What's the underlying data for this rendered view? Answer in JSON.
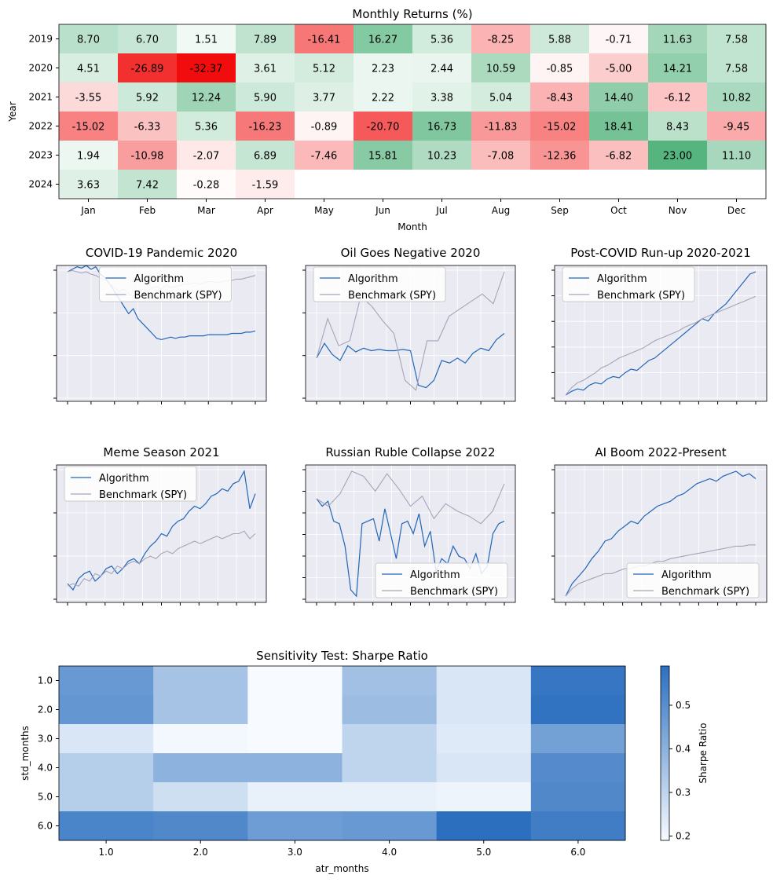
{
  "chart_data": [
    {
      "type": "heatmap",
      "title": "Monthly Returns (%)",
      "xlabel": "Month",
      "ylabel": "Year",
      "x_categories": [
        "Jan",
        "Feb",
        "Mar",
        "Apr",
        "May",
        "Jun",
        "Jul",
        "Aug",
        "Sep",
        "Oct",
        "Nov",
        "Dec"
      ],
      "y_categories": [
        "2019",
        "2020",
        "2021",
        "2022",
        "2023",
        "2024"
      ],
      "values": [
        [
          8.7,
          6.7,
          1.51,
          7.89,
          -16.41,
          16.27,
          5.36,
          -8.25,
          5.88,
          -0.71,
          11.63,
          7.58
        ],
        [
          4.51,
          -26.89,
          -32.37,
          3.61,
          5.12,
          2.23,
          2.44,
          10.59,
          -0.85,
          -5.0,
          14.21,
          7.58
        ],
        [
          -3.55,
          5.92,
          12.24,
          5.9,
          3.77,
          2.22,
          3.38,
          5.04,
          -8.43,
          14.4,
          -6.12,
          10.82
        ],
        [
          -15.02,
          -6.33,
          5.36,
          -16.23,
          -0.89,
          -20.7,
          16.73,
          -11.83,
          -15.02,
          18.41,
          8.43,
          -9.45
        ],
        [
          1.94,
          -10.98,
          -2.07,
          6.89,
          -7.46,
          15.81,
          10.23,
          -7.08,
          -12.36,
          -6.82,
          23.0,
          11.1
        ],
        [
          3.63,
          7.42,
          -0.28,
          -1.59,
          null,
          null,
          null,
          null,
          null,
          null,
          null,
          null
        ]
      ],
      "labels": [
        [
          "8.70",
          "6.70",
          "1.51",
          "7.89",
          "-16.41",
          "16.27",
          "5.36",
          "-8.25",
          "5.88",
          "-0.71",
          "11.63",
          "7.58"
        ],
        [
          "4.51",
          "-26.89",
          "-32.37",
          "3.61",
          "5.12",
          "2.23",
          "2.44",
          "10.59",
          "-0.85",
          "-5.00",
          "14.21",
          "7.58"
        ],
        [
          "-3.55",
          "5.92",
          "12.24",
          "5.90",
          "3.77",
          "2.22",
          "3.38",
          "5.04",
          "-8.43",
          "14.40",
          "-6.12",
          "10.82"
        ],
        [
          "-15.02",
          "-6.33",
          "5.36",
          "-16.23",
          "-0.89",
          "-20.70",
          "16.73",
          "-11.83",
          "-15.02",
          "18.41",
          "8.43",
          "-9.45"
        ],
        [
          "1.94",
          "-10.98",
          "-2.07",
          "6.89",
          "-7.46",
          "15.81",
          "10.23",
          "-7.08",
          "-12.36",
          "-6.82",
          "23.00",
          "11.10"
        ],
        [
          "3.63",
          "7.42",
          "-0.28",
          "-1.59",
          "",
          "",
          "",
          "",
          "",
          "",
          "",
          ""
        ]
      ],
      "colors": {
        "positive": "#2ca25f",
        "negative": "#f00000",
        "neutral": "#ffffff"
      }
    },
    {
      "type": "line",
      "title": "COVID-19 Pandemic 2020",
      "legend": [
        "Algorithm",
        "Benchmark (SPY)"
      ],
      "legend_position": "top-center",
      "grid": true,
      "x_tick_count": 9,
      "y_tick_count": 4,
      "series": [
        {
          "name": "Algorithm",
          "color": "#2166b8",
          "values": [
            1.0,
            1.02,
            1.04,
            1.03,
            1.05,
            1.02,
            1.04,
            0.98,
            0.95,
            0.9,
            0.84,
            0.78,
            0.72,
            0.66,
            0.7,
            0.62,
            0.58,
            0.54,
            0.5,
            0.46,
            0.45,
            0.46,
            0.47,
            0.46,
            0.47,
            0.47,
            0.48,
            0.48,
            0.48,
            0.48,
            0.49,
            0.49,
            0.49,
            0.49,
            0.49,
            0.5,
            0.5,
            0.5,
            0.51,
            0.51,
            0.52
          ]
        },
        {
          "name": "Benchmark (SPY)",
          "color": "#a6a4b9",
          "values": [
            1.0,
            1.01,
            1.0,
            0.99,
            1.0,
            0.98,
            0.97,
            0.95,
            0.93,
            0.9,
            0.87,
            0.84,
            0.86,
            0.82,
            0.8,
            0.83,
            0.86,
            0.84,
            0.87,
            0.88,
            0.86,
            0.89,
            0.87,
            0.88,
            0.89,
            0.9,
            0.9,
            0.91,
            0.9,
            0.91,
            0.92,
            0.92,
            0.91,
            0.92,
            0.93,
            0.93,
            0.94,
            0.94,
            0.95,
            0.96,
            0.97
          ]
        }
      ]
    },
    {
      "type": "line",
      "title": "Oil Goes Negative 2020",
      "legend": [
        "Algorithm",
        "Benchmark (SPY)"
      ],
      "legend_position": "top-left",
      "grid": true,
      "x_tick_count": 9,
      "y_tick_count": 4,
      "series": [
        {
          "name": "Algorithm",
          "color": "#2166b8",
          "values": [
            0.3,
            0.42,
            0.33,
            0.28,
            0.4,
            0.35,
            0.38,
            0.36,
            0.37,
            0.36,
            0.36,
            0.37,
            0.36,
            0.08,
            0.06,
            0.12,
            0.28,
            0.26,
            0.3,
            0.26,
            0.34,
            0.38,
            0.36,
            0.45,
            0.5
          ]
        },
        {
          "name": "Benchmark (SPY)",
          "color": "#a6a4b9",
          "values": [
            0.3,
            0.62,
            0.4,
            0.44,
            0.8,
            0.72,
            0.6,
            0.5,
            0.12,
            0.04,
            0.44,
            0.44,
            0.64,
            0.7,
            0.76,
            0.82,
            0.74,
            1.0
          ]
        }
      ]
    },
    {
      "type": "line",
      "title": "Post-COVID Run-up 2020-2021",
      "legend": [
        "Algorithm",
        "Benchmark (SPY)"
      ],
      "legend_position": "top-left",
      "grid": true,
      "x_tick_count": 11,
      "y_tick_count": 6,
      "series": [
        {
          "name": "Algorithm",
          "color": "#2166b8",
          "values": [
            0.0,
            0.03,
            0.05,
            0.04,
            0.08,
            0.1,
            0.09,
            0.13,
            0.15,
            0.14,
            0.18,
            0.21,
            0.2,
            0.24,
            0.28,
            0.3,
            0.34,
            0.38,
            0.42,
            0.46,
            0.5,
            0.54,
            0.58,
            0.62,
            0.6,
            0.66,
            0.7,
            0.74,
            0.8,
            0.86,
            0.92,
            0.98,
            1.0
          ]
        },
        {
          "name": "Benchmark (SPY)",
          "color": "#a6a4b9",
          "values": [
            0.0,
            0.06,
            0.1,
            0.12,
            0.15,
            0.18,
            0.22,
            0.24,
            0.27,
            0.3,
            0.32,
            0.34,
            0.36,
            0.38,
            0.41,
            0.44,
            0.46,
            0.48,
            0.5,
            0.52,
            0.55,
            0.57,
            0.59,
            0.62,
            0.64,
            0.66,
            0.68,
            0.7,
            0.72,
            0.74,
            0.76,
            0.78,
            0.8
          ]
        }
      ]
    },
    {
      "type": "line",
      "title": "Meme Season 2021",
      "legend": [
        "Algorithm",
        "Benchmark (SPY)"
      ],
      "legend_position": "top-left",
      "grid": true,
      "x_tick_count": 11,
      "y_tick_count": 4,
      "series": [
        {
          "name": "Algorithm",
          "color": "#2166b8",
          "values": [
            0.1,
            0.05,
            0.14,
            0.18,
            0.2,
            0.12,
            0.16,
            0.22,
            0.24,
            0.18,
            0.22,
            0.28,
            0.3,
            0.26,
            0.34,
            0.4,
            0.44,
            0.5,
            0.48,
            0.56,
            0.6,
            0.62,
            0.68,
            0.72,
            0.7,
            0.74,
            0.8,
            0.82,
            0.86,
            0.84,
            0.9,
            0.92,
            1.0,
            0.7,
            0.82
          ]
        },
        {
          "name": "Benchmark (SPY)",
          "color": "#a6a4b9",
          "values": [
            0.08,
            0.1,
            0.08,
            0.14,
            0.12,
            0.18,
            0.16,
            0.2,
            0.18,
            0.24,
            0.22,
            0.26,
            0.28,
            0.26,
            0.3,
            0.32,
            0.3,
            0.34,
            0.36,
            0.34,
            0.38,
            0.4,
            0.42,
            0.44,
            0.42,
            0.44,
            0.46,
            0.48,
            0.46,
            0.48,
            0.5,
            0.5,
            0.52,
            0.46,
            0.5
          ]
        }
      ]
    },
    {
      "type": "line",
      "title": "Russian Ruble Collapse 2022",
      "legend": [
        "Algorithm",
        "Benchmark (SPY)"
      ],
      "legend_position": "bottom-right",
      "grid": true,
      "x_tick_count": 11,
      "y_tick_count": 7,
      "series": [
        {
          "name": "Algorithm",
          "color": "#2166b8",
          "values": [
            0.78,
            0.72,
            0.76,
            0.6,
            0.58,
            0.4,
            0.05,
            0.0,
            0.58,
            0.6,
            0.62,
            0.44,
            0.7,
            0.5,
            0.3,
            0.58,
            0.6,
            0.5,
            0.66,
            0.4,
            0.52,
            0.2,
            0.3,
            0.26,
            0.4,
            0.32,
            0.3,
            0.22,
            0.34,
            0.18,
            0.24,
            0.5,
            0.58,
            0.6
          ]
        },
        {
          "name": "Benchmark (SPY)",
          "color": "#a6a4b9",
          "values": [
            0.78,
            0.72,
            0.82,
            1.0,
            0.96,
            0.84,
            0.98,
            0.86,
            0.72,
            0.8,
            0.62,
            0.74,
            0.68,
            0.64,
            0.58,
            0.68,
            0.9
          ]
        }
      ]
    },
    {
      "type": "line",
      "title": "AI Boom 2022-Present",
      "legend": [
        "Algorithm",
        "Benchmark (SPY)"
      ],
      "legend_position": "bottom-right",
      "grid": true,
      "x_tick_count": 11,
      "y_tick_count": 4,
      "series": [
        {
          "name": "Algorithm",
          "color": "#2166b8",
          "values": [
            0.0,
            0.1,
            0.16,
            0.22,
            0.3,
            0.36,
            0.44,
            0.46,
            0.52,
            0.56,
            0.6,
            0.58,
            0.64,
            0.68,
            0.72,
            0.74,
            0.76,
            0.8,
            0.82,
            0.86,
            0.9,
            0.92,
            0.94,
            0.92,
            0.96,
            0.98,
            1.0,
            0.96,
            0.98,
            0.94
          ]
        },
        {
          "name": "Benchmark (SPY)",
          "color": "#a6a4b9",
          "values": [
            0.0,
            0.06,
            0.1,
            0.12,
            0.14,
            0.16,
            0.18,
            0.18,
            0.2,
            0.22,
            0.22,
            0.24,
            0.24,
            0.26,
            0.28,
            0.28,
            0.3,
            0.31,
            0.32,
            0.33,
            0.34,
            0.35,
            0.36,
            0.37,
            0.38,
            0.39,
            0.4,
            0.4,
            0.41,
            0.41
          ]
        }
      ]
    },
    {
      "type": "heatmap",
      "title": "Sensitivity Test: Sharpe Ratio",
      "xlabel": "atr_months",
      "ylabel": "std_months",
      "x_categories": [
        "1.0",
        "2.0",
        "3.0",
        "4.0",
        "5.0",
        "6.0"
      ],
      "y_categories": [
        "1.0",
        "2.0",
        "3.0",
        "4.0",
        "5.0",
        "6.0"
      ],
      "values": [
        [
          0.47,
          0.35,
          0.19,
          0.36,
          0.25,
          0.57
        ],
        [
          0.48,
          0.35,
          0.18,
          0.37,
          0.25,
          0.58
        ],
        [
          0.25,
          0.2,
          0.18,
          0.3,
          0.24,
          0.45
        ],
        [
          0.32,
          0.4,
          0.4,
          0.3,
          0.25,
          0.51
        ],
        [
          0.32,
          0.27,
          0.22,
          0.22,
          0.21,
          0.52
        ],
        [
          0.53,
          0.52,
          0.46,
          0.47,
          0.59,
          0.55
        ]
      ],
      "colorbar": {
        "label": "Sharpe Ratio",
        "ticks": [
          "0.2",
          "0.3",
          "0.4",
          "0.5"
        ],
        "min": 0.19,
        "max": 0.59
      },
      "colors": {
        "low": "#f7fbff",
        "high": "#2c6fbf"
      }
    }
  ]
}
